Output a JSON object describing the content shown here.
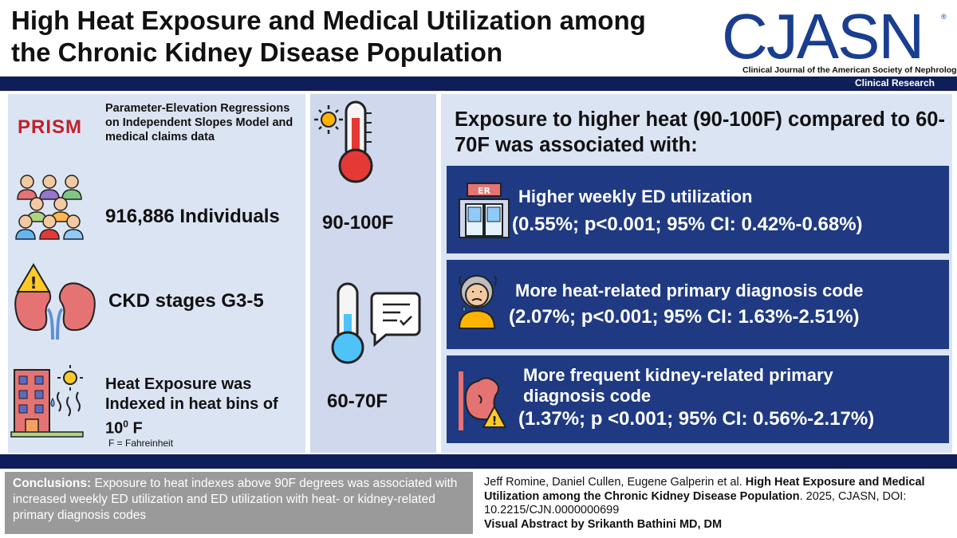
{
  "header": {
    "title_line1": "High Heat Exposure and Medical Utilization among",
    "title_line2": "the Chronic Kidney Disease Population",
    "logo": "CJASN",
    "logo_mark": "®",
    "journal_name": "Clinical Journal of the American Society of Nephrology",
    "section": "Clinical Research"
  },
  "left": {
    "prism_label": "PRISM",
    "prism_desc": "Parameter-Elevation Regressions on Independent Slopes Model and medical claims data",
    "individuals": "916,886 Individuals",
    "ckd": "CKD stages G3-5",
    "heat_exposure": "Heat Exposure was Indexed in heat bins of 10",
    "heat_exposure_sup": "0",
    "heat_exposure_unit": " F",
    "f_definition": "F = Fahreinheit"
  },
  "middle": {
    "high_temp": "90-100F",
    "low_temp": "60-70F"
  },
  "right": {
    "heading": "Exposure to higher heat (90-100F) compared to 60-70F was associated with:",
    "er_sign": "ER",
    "results": [
      {
        "title": "Higher weekly ED utilization",
        "value": "(0.55%; p<0.001; 95% CI: 0.42%-0.68%)"
      },
      {
        "title": "More heat-related primary diagnosis code",
        "value": "(2.07%; p<0.001; 95% CI: 1.63%-2.51%)"
      },
      {
        "title": "More frequent kidney-related primary diagnosis code",
        "value": "(1.37%; p <0.001; 95% CI: 0.56%-2.17%)"
      }
    ]
  },
  "footer": {
    "conclusions_label": "Conclusions:",
    "conclusions_text": " Exposure to heat indexes above 90F degrees was associated with increased weekly ED utilization and ED utilization with heat- or kidney-related primary diagnosis codes",
    "authors": "Jeff Romine, Daniel Cullen, Eugene Galperin et al. ",
    "paper_title": "High Heat Exposure and Medical Utilization among the Chronic Kidney Disease Population",
    "citation": ". 2025, CJASN,  DOI: 10.2215/CJN.0000000699",
    "credit": "Visual Abstract by Srikanth Bathini MD, DM"
  },
  "colors": {
    "navy": "#0f1e5a",
    "result_box": "#1f3a82",
    "panel": "#dbe4f3",
    "prism_red": "#c0212b",
    "logo_blue": "#1a3e8f"
  }
}
